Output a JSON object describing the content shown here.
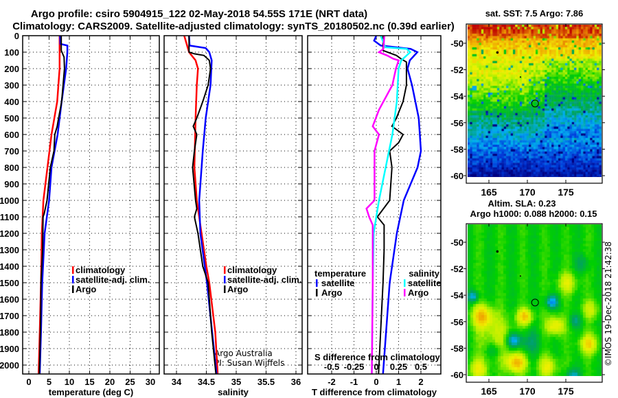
{
  "title": {
    "line1": "Argo profile: csiro 5904915_122 02-May-2018 54.55S 171E (NRT data)",
    "line2": "Climatology: CARS2009. Satellite-adjusted climatology: synTS_20180502.nc (0.39d earlier)"
  },
  "depth_ticks": [
    "0",
    "100",
    "200",
    "300",
    "400",
    "500",
    "600",
    "700",
    "800",
    "900",
    "1000",
    "1100",
    "1200",
    "1300",
    "1400",
    "1500",
    "1600",
    "1700",
    "1800",
    "1900",
    "2000"
  ],
  "credit": {
    "line1": "Argo Australia",
    "line2": "PI: Susan Wijffels"
  },
  "footer": "©IMOS 19-Dec-2018 21:42:38",
  "colors": {
    "climatology": "#ff0000",
    "satellite": "#0000ff",
    "argo": "#000000",
    "sal_satellite": "#00ffff",
    "sal_argo": "#ff00ff"
  },
  "chart_data": [
    {
      "type": "line",
      "name": "temperature",
      "xlabel": "temperature (deg C)",
      "ylabel": "depth",
      "xlim": [
        -1.5,
        32
      ],
      "ylim": [
        2052,
        0
      ],
      "xticks": [
        0,
        5,
        10,
        15,
        20,
        25,
        30
      ],
      "xtick_labels": [
        "0",
        "5",
        "10",
        "15",
        "20",
        "25",
        "30"
      ],
      "grid": true,
      "legend": [
        "climatology",
        "satellite-adj. clim.",
        "Argo"
      ],
      "series": [
        {
          "name": "climatology",
          "color": "#ff0000",
          "points": [
            [
              0,
              7.6
            ],
            [
              200,
              7.6
            ],
            [
              400,
              7.0
            ],
            [
              600,
              5.6
            ],
            [
              800,
              4.6
            ],
            [
              1000,
              3.6
            ],
            [
              1200,
              3.2
            ],
            [
              1500,
              3.0
            ],
            [
              1800,
              2.7
            ],
            [
              2052,
              2.4
            ]
          ]
        },
        {
          "name": "satellite-adj. clim.",
          "color": "#0000ff",
          "points": [
            [
              0,
              7.7
            ],
            [
              50,
              7.8
            ],
            [
              60,
              9.5
            ],
            [
              100,
              9.5
            ],
            [
              200,
              9.2
            ],
            [
              400,
              8.1
            ],
            [
              600,
              7.1
            ],
            [
              800,
              5.6
            ],
            [
              1000,
              5.0
            ],
            [
              1200,
              3.9
            ],
            [
              1500,
              3.3
            ],
            [
              1800,
              3.0
            ],
            [
              2052,
              2.7
            ]
          ]
        },
        {
          "name": "Argo",
          "color": "#000000",
          "points": [
            [
              0,
              8.0
            ],
            [
              90,
              8.0
            ],
            [
              130,
              8.7
            ],
            [
              200,
              8.8
            ],
            [
              400,
              8.1
            ],
            [
              520,
              7.2
            ],
            [
              550,
              7.0
            ],
            [
              600,
              6.4
            ],
            [
              700,
              6.2
            ],
            [
              800,
              5.3
            ],
            [
              1000,
              4.5
            ],
            [
              1080,
              3.8
            ],
            [
              1100,
              3.5
            ],
            [
              1300,
              3.4
            ],
            [
              1500,
              3.0
            ],
            [
              1750,
              2.9
            ],
            [
              2052,
              2.6
            ]
          ]
        }
      ]
    },
    {
      "type": "line",
      "name": "salinity",
      "xlabel": "salinity",
      "xlim": [
        33.62,
        35.93
      ],
      "ylim": [
        2052,
        0
      ],
      "xticks": [
        34,
        34.5,
        35,
        35.5,
        36
      ],
      "xtick_labels": [
        "34",
        "34.5",
        "35",
        "35.5",
        "36"
      ],
      "grid": true,
      "legend": [
        "climatology",
        "satellite-adj. clim.",
        "Argo"
      ],
      "series": [
        {
          "name": "climatology",
          "color": "#ff0000",
          "points": [
            [
              0,
              34.13
            ],
            [
              100,
              34.21
            ],
            [
              150,
              34.32
            ],
            [
              200,
              34.36
            ],
            [
              300,
              34.34
            ],
            [
              500,
              34.32
            ],
            [
              800,
              34.3
            ],
            [
              1000,
              34.34
            ],
            [
              1200,
              34.42
            ],
            [
              1400,
              34.5
            ],
            [
              1500,
              34.55
            ],
            [
              1800,
              34.65
            ],
            [
              2052,
              34.69
            ]
          ]
        },
        {
          "name": "satellite-adj. clim.",
          "color": "#0000ff",
          "points": [
            [
              0,
              34.21
            ],
            [
              60,
              34.22
            ],
            [
              75,
              34.49
            ],
            [
              100,
              34.55
            ],
            [
              150,
              34.59
            ],
            [
              300,
              34.57
            ],
            [
              500,
              34.49
            ],
            [
              700,
              34.44
            ],
            [
              1000,
              34.38
            ],
            [
              1200,
              34.4
            ],
            [
              1500,
              34.51
            ],
            [
              2052,
              34.67
            ]
          ]
        },
        {
          "name": "Argo",
          "color": "#000000",
          "points": [
            [
              0,
              34.21
            ],
            [
              100,
              34.21
            ],
            [
              110,
              34.3
            ],
            [
              120,
              34.46
            ],
            [
              150,
              34.55
            ],
            [
              200,
              34.57
            ],
            [
              300,
              34.53
            ],
            [
              400,
              34.44
            ],
            [
              500,
              34.34
            ],
            [
              550,
              34.28
            ],
            [
              600,
              34.34
            ],
            [
              700,
              34.3
            ],
            [
              800,
              34.27
            ],
            [
              1000,
              34.32
            ],
            [
              1050,
              34.34
            ],
            [
              1100,
              34.3
            ],
            [
              1200,
              34.36
            ],
            [
              1400,
              34.44
            ],
            [
              1500,
              34.53
            ],
            [
              1800,
              34.59
            ],
            [
              2052,
              34.66
            ]
          ]
        }
      ]
    },
    {
      "type": "line",
      "name": "difference",
      "xlabel": "T difference from climatology",
      "xlabel2": "S difference from climatology",
      "xlim": [
        -3.08,
        2.9
      ],
      "ylim": [
        2052,
        0
      ],
      "xticks": [
        -2,
        -1,
        0,
        1,
        2
      ],
      "xtick_labels": [
        "-2",
        "-1",
        "0",
        "1",
        "2"
      ],
      "s_ticks": [
        -0.5,
        -0.25,
        0,
        0.25,
        0.5
      ],
      "s_tick_labels": [
        "-0.5",
        "-0.25",
        "0",
        "0.25",
        "0.5"
      ],
      "grid": true,
      "legend_temperature": {
        "title": "temperature",
        "items": [
          "satellite",
          "Argo"
        ]
      },
      "legend_salinity": {
        "title": "salinity",
        "items": [
          "satellite",
          "Argo"
        ]
      },
      "series": [
        {
          "name": "T satellite",
          "kind": "T",
          "color": "#0000ff",
          "points": [
            [
              0,
              0
            ],
            [
              30,
              -0.1
            ],
            [
              60,
              0.2
            ],
            [
              80,
              1.54
            ],
            [
              100,
              1.84
            ],
            [
              150,
              1.5
            ],
            [
              200,
              1.4
            ],
            [
              300,
              1.6
            ],
            [
              500,
              1.9
            ],
            [
              700,
              2.0
            ],
            [
              800,
              1.85
            ],
            [
              1000,
              1.23
            ],
            [
              1200,
              0.92
            ],
            [
              1500,
              0.6
            ],
            [
              2052,
              0.3
            ]
          ]
        },
        {
          "name": "T Argo",
          "kind": "T",
          "color": "#000000",
          "points": [
            [
              0,
              0.3
            ],
            [
              90,
              0.3
            ],
            [
              120,
              0.9
            ],
            [
              140,
              1.1
            ],
            [
              160,
              1.35
            ],
            [
              300,
              1.35
            ],
            [
              400,
              1.2
            ],
            [
              500,
              0.9
            ],
            [
              550,
              0.7
            ],
            [
              600,
              1.2
            ],
            [
              650,
              1.0
            ],
            [
              700,
              0.6
            ],
            [
              800,
              0.7
            ],
            [
              1000,
              0.6
            ],
            [
              1100,
              0.05
            ],
            [
              1150,
              0.35
            ],
            [
              1300,
              0.35
            ],
            [
              1500,
              0.3
            ],
            [
              2052,
              0.1
            ]
          ]
        },
        {
          "name": "S satellite",
          "kind": "S",
          "color": "#00ffff",
          "points": [
            [
              0,
              0.05
            ],
            [
              70,
              0.1
            ],
            [
              80,
              0.34
            ],
            [
              100,
              0.38
            ],
            [
              150,
              0.28
            ],
            [
              200,
              0.25
            ],
            [
              400,
              0.23
            ],
            [
              600,
              0.18
            ],
            [
              1000,
              0.03
            ],
            [
              1200,
              -0.03
            ],
            [
              1500,
              -0.04
            ],
            [
              2052,
              -0.05
            ]
          ]
        },
        {
          "name": "S Argo",
          "kind": "S",
          "color": "#ff00ff",
          "points": [
            [
              0,
              0.09
            ],
            [
              80,
              0.08
            ],
            [
              100,
              0.03
            ],
            [
              120,
              0.12
            ],
            [
              140,
              0.19
            ],
            [
              150,
              0.25
            ],
            [
              200,
              0.22
            ],
            [
              300,
              0.18
            ],
            [
              450,
              0.03
            ],
            [
              550,
              -0.04
            ],
            [
              600,
              0.03
            ],
            [
              700,
              -0.02
            ],
            [
              1000,
              -0.02
            ],
            [
              1050,
              -0.11
            ],
            [
              1100,
              -0.08
            ],
            [
              1150,
              -0.04
            ],
            [
              1500,
              -0.04
            ],
            [
              2052,
              -0.05
            ]
          ]
        }
      ]
    },
    {
      "type": "heatmap",
      "name": "sst-map",
      "title": "sat. SST: 7.5 Argo: 7.86",
      "xlim": [
        162.4,
        180
      ],
      "ylim": [
        -60.2,
        -48.3
      ],
      "xticks": [
        165,
        170,
        175
      ],
      "xtick_labels": [
        "165",
        "170",
        "175"
      ],
      "yticks": [
        -50,
        -52,
        -54,
        -56,
        -58,
        -60
      ],
      "ytick_labels": [
        "-50",
        "-52",
        "-54",
        "-56",
        "-58",
        "-60"
      ],
      "marker": {
        "lon": 171,
        "lat": -54.55
      }
    },
    {
      "type": "heatmap",
      "name": "sla-map",
      "title": "Altim. SLA: 0.23",
      "subtitle": "Argo h1000: 0.088 h2000: 0.15",
      "xlim": [
        162.4,
        180
      ],
      "ylim": [
        -60.1,
        -48.5
      ],
      "xticks": [
        165,
        170,
        175
      ],
      "xtick_labels": [
        "165",
        "170",
        "175"
      ],
      "yticks": [
        -50,
        -52,
        -54,
        -56,
        -58,
        -60
      ],
      "ytick_labels": [
        "-50",
        "-52",
        "-54",
        "-56",
        "-58",
        "-60"
      ],
      "marker": {
        "lon": 171,
        "lat": -54.55
      }
    }
  ]
}
